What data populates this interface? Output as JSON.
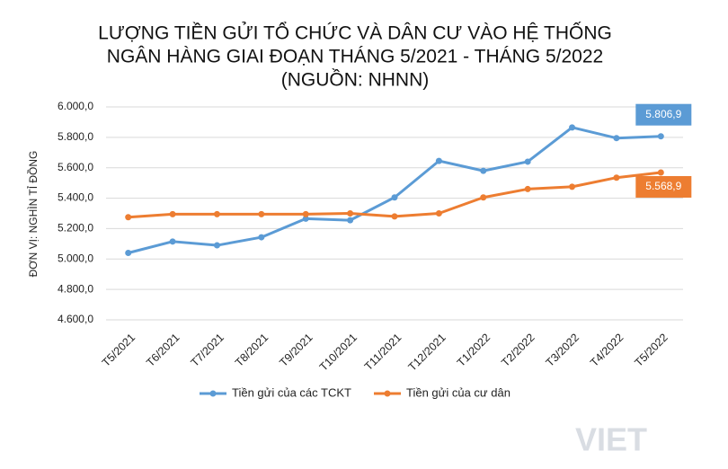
{
  "chart_data": {
    "type": "line",
    "title": [
      "LƯỢNG TIỀN GỬI TỔ CHỨC VÀ DÂN CƯ VÀO HỆ THỐNG",
      "NGÂN HÀNG GIAI ĐOẠN THÁNG 5/2021 - THÁNG 5/2022",
      "(NGUỒN: NHNN)"
    ],
    "y_label": "ĐƠN VỊ: NGHÌN TỈ ĐỒNG",
    "categories": [
      "T5/2021",
      "T6/2021",
      "T7/2021",
      "T8/2021",
      "T9/2021",
      "T10/2021",
      "T11/2021",
      "T12/2021",
      "T1/2022",
      "T2/2022",
      "T3/2022",
      "T4/2022",
      "T5/2022"
    ],
    "series": [
      {
        "name": "Tiền gửi của các TCKT",
        "color": "#5b9bd5",
        "values": [
          5040,
          5115,
          5090,
          5143,
          5265,
          5255,
          5405,
          5645,
          5580,
          5640,
          5865,
          5795,
          5806.9
        ],
        "value_labels": [
          null,
          null,
          null,
          null,
          null,
          null,
          null,
          null,
          null,
          null,
          null,
          null,
          "5.806,9"
        ]
      },
      {
        "name": "Tiền gửi của cư dân",
        "color": "#ed7d31",
        "values": [
          5275,
          5295,
          5295,
          5295,
          5295,
          5300,
          5280,
          5300,
          5405,
          5460,
          5475,
          5535,
          5568.9
        ],
        "value_labels": [
          null,
          null,
          null,
          null,
          null,
          null,
          null,
          null,
          null,
          null,
          null,
          null,
          "5.568,9"
        ]
      }
    ],
    "ylim": [
      4600,
      6000
    ],
    "yticks": [
      {
        "value": 4600,
        "label": "4.600,0"
      },
      {
        "value": 4800,
        "label": "4.800,0"
      },
      {
        "value": 5000,
        "label": "5.000,0"
      },
      {
        "value": 5200,
        "label": "5.200,0"
      },
      {
        "value": 5400,
        "label": "5.400,0"
      },
      {
        "value": 5600,
        "label": "5.600,0"
      },
      {
        "value": 5800,
        "label": "5.800,0"
      },
      {
        "value": 6000,
        "label": "6.000,0"
      }
    ],
    "grid": true,
    "legend": "bottom",
    "watermark": "VIET"
  }
}
